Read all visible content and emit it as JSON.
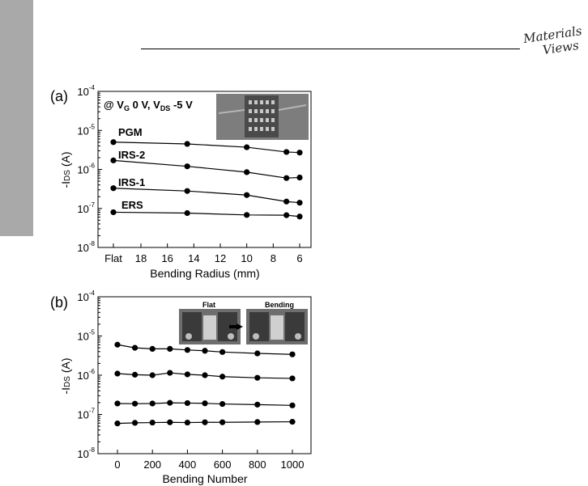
{
  "brand": {
    "line1": "Materials",
    "line2": "Views"
  },
  "chart_data": [
    {
      "type": "line",
      "panel_label": "(a)",
      "annotation": "@ VG 0 V, VDS -5 V",
      "ylabel": "-IDS (A)",
      "xlabel": "Bending Radius (mm)",
      "yscale": "log",
      "ylim": [
        1e-08,
        0.0001
      ],
      "y_ticks": [
        "10-8",
        "10-7",
        "10-6",
        "10-5",
        "10-4"
      ],
      "x_ticks": [
        "Flat",
        "18",
        "16",
        "14",
        "12",
        "10",
        "8",
        "6"
      ],
      "x": [
        "Flat",
        14.5,
        10,
        7,
        6
      ],
      "series": [
        {
          "name": "PGM",
          "values": [
            5e-06,
            4.5e-06,
            3.7e-06,
            2.8e-06,
            2.7e-06
          ]
        },
        {
          "name": "IRS-2",
          "values": [
            1.7e-06,
            1.2e-06,
            8.5e-07,
            6e-07,
            6.2e-07
          ]
        },
        {
          "name": "IRS-1",
          "values": [
            3.3e-07,
            2.8e-07,
            2.2e-07,
            1.5e-07,
            1.4e-07
          ]
        },
        {
          "name": "ERS",
          "values": [
            8e-08,
            7.6e-08,
            6.8e-08,
            6.7e-08,
            6.2e-08
          ]
        }
      ]
    },
    {
      "type": "line",
      "panel_label": "(b)",
      "ylabel": "-IDS (A)",
      "xlabel": "Bending Number",
      "yscale": "log",
      "ylim": [
        1e-08,
        0.0001
      ],
      "xlim": [
        -100,
        1060
      ],
      "y_ticks": [
        "10-8",
        "10-7",
        "10-6",
        "10-5",
        "10-4"
      ],
      "x_ticks": [
        "0",
        "200",
        "400",
        "600",
        "800",
        "1000"
      ],
      "inset_labels": {
        "flat": "Flat",
        "bending": "Bending"
      },
      "x": [
        0,
        100,
        200,
        300,
        400,
        500,
        600,
        800,
        1000
      ],
      "series": [
        {
          "values": [
            6e-06,
            5e-06,
            4.7e-06,
            4.7e-06,
            4.4e-06,
            4.2e-06,
            3.9e-06,
            3.6e-06,
            3.4e-06
          ]
        },
        {
          "values": [
            1.1e-06,
            1.03e-06,
            1e-06,
            1.15e-06,
            1.05e-06,
            1e-06,
            9.2e-07,
            8.6e-07,
            8.3e-07
          ]
        },
        {
          "values": [
            1.9e-07,
            1.88e-07,
            1.9e-07,
            1.98e-07,
            1.95e-07,
            1.92e-07,
            1.85e-07,
            1.78e-07,
            1.7e-07
          ]
        },
        {
          "values": [
            5.9e-08,
            6.1e-08,
            6.2e-08,
            6.3e-08,
            6.2e-08,
            6.3e-08,
            6.3e-08,
            6.4e-08,
            6.5e-08
          ]
        }
      ]
    }
  ]
}
